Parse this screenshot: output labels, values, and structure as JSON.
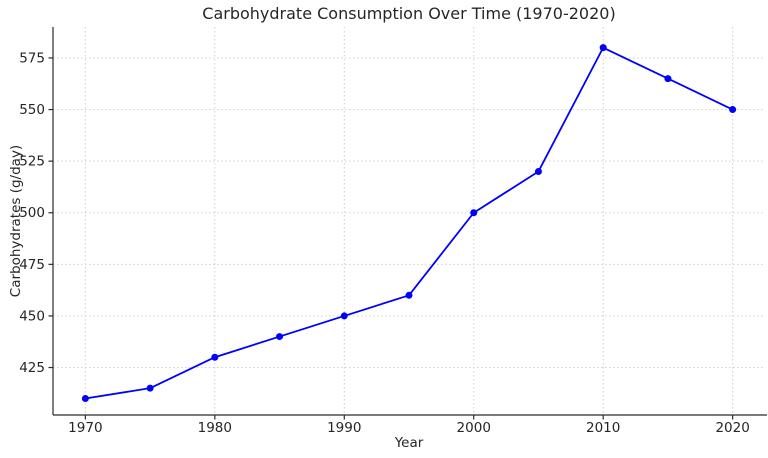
{
  "chart_data": {
    "type": "line",
    "title": "Carbohydrate Consumption Over Time (1970-2020)",
    "xlabel": "Year",
    "ylabel": "Carbohydrates (g/day)",
    "x": [
      1970,
      1975,
      1980,
      1985,
      1990,
      1995,
      2000,
      2005,
      2010,
      2015,
      2020
    ],
    "series": [
      {
        "name": "Carbohydrates",
        "values": [
          410,
          415,
          430,
          440,
          450,
          460,
          500,
          520,
          580,
          565,
          550
        ]
      }
    ],
    "xlim": [
      1967.5,
      2022.5
    ],
    "ylim": [
      402,
      590
    ],
    "xticks": [
      1970,
      1980,
      1990,
      2000,
      2010,
      2020
    ],
    "yticks": [
      425,
      450,
      475,
      500,
      525,
      550,
      575
    ],
    "grid": true,
    "grid_style": "dotted",
    "legend": "none",
    "line_color": "#0000ff",
    "marker": "circle",
    "marker_color": "#0000ff",
    "background_color": "#ffffff",
    "text_color": "#262626",
    "grid_color": "#d0d0d0",
    "spine_color": "#2b2b2b"
  }
}
